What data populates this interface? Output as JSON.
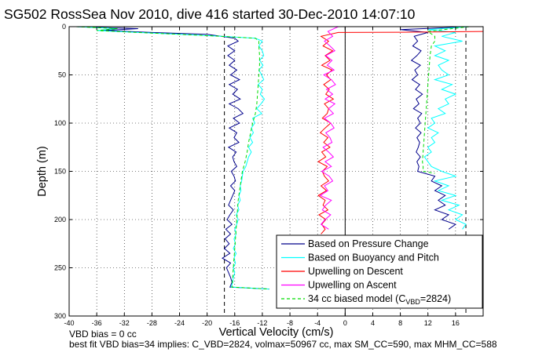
{
  "title": "SG502 RossSea Nov 2010, dive 416 started 30-Dec-2010 14:07:10",
  "footer": {
    "line1": "VBD bias = 0 cc",
    "line2": "best fit VBD bias=34 implies: C_VBD=2824, volmax=50967 cc, max SM_CC=590, max MHM_CC=588"
  },
  "colors": {
    "pressure": "#00008b",
    "buoyancy": "#00ffff",
    "descent": "#ff0000",
    "ascent": "#ff00ff",
    "model": "#00dd00"
  },
  "chart_data": {
    "type": "line",
    "title": "SG502 RossSea Nov 2010, dive 416 started 30-Dec-2010 14:07:10",
    "xlabel": "Vertical Velocity (cm/s)",
    "ylabel": "Depth (m)",
    "xlim": [
      -40,
      20
    ],
    "ylim": [
      0,
      300
    ],
    "y_inverted": true,
    "grid": true,
    "x_ticks": [
      -40,
      -36,
      -32,
      -28,
      -24,
      -20,
      -16,
      -12,
      -8,
      -4,
      0,
      4,
      8,
      12,
      16
    ],
    "y_ticks": [
      0,
      50,
      100,
      150,
      200,
      250,
      300
    ],
    "reference_lines_x": [
      -17.5,
      17.5
    ],
    "legend_position": "bottom-right",
    "legend": [
      "Based on Pressure Change",
      "Based on Buoyancy and Pitch",
      "Upwelling on Descent",
      "Upwelling on Ascent",
      "34 cc biased model (C"
    ],
    "legend_model_sub": "VBD",
    "legend_model_suffix": "=2824)",
    "series": [
      {
        "name": "Based on Pressure Change",
        "segments": [
          {
            "depth": [
              0,
              2,
              4,
              6,
              8,
              10,
              12,
              15,
              20,
              25,
              30,
              35,
              40,
              45,
              50,
              55,
              60,
              65,
              70,
              75,
              80,
              85,
              90,
              95,
              100,
              105,
              110,
              115,
              120,
              125,
              130,
              135,
              140,
              145,
              150,
              155,
              160,
              165,
              170,
              175,
              180,
              185,
              190,
              195,
              200,
              205,
              210,
              215,
              220,
              225,
              230,
              235,
              240,
              245,
              250,
              255,
              260,
              265,
              270,
              272
            ],
            "vel": [
              -39,
              -30,
              -35,
              -28,
              -20,
              -18,
              -16,
              -15.5,
              -17,
              -16,
              -17,
              -16,
              -16.8,
              -15.7,
              -16.6,
              -15.3,
              -16.8,
              -15.6,
              -16.3,
              -15.2,
              -16.8,
              -15.5,
              -14.8,
              -16.2,
              -15.3,
              -16.8,
              -15.7,
              -16.1,
              -15.4,
              -16.9,
              -15.8,
              -16.3,
              -16.1,
              -15.7,
              -16.5,
              -16.1,
              -15.9,
              -16.6,
              -16,
              -16.3,
              -16.6,
              -16.9,
              -16.2,
              -16.7,
              -17.1,
              -16.4,
              -17.3,
              -16.6,
              -17.4,
              -16.8,
              -17.5,
              -16.7,
              -17.8,
              -16.6,
              -17.2,
              -16.9,
              -16.6,
              -16.4,
              -16.7,
              -11
            ]
          },
          {
            "depth": [
              0,
              3,
              6,
              10,
              15,
              20,
              25,
              30,
              35,
              40,
              45,
              50,
              55,
              60,
              65,
              70,
              75,
              80,
              85,
              90,
              95,
              100,
              105,
              110,
              115,
              120,
              125,
              130,
              135,
              140,
              145,
              150,
              155,
              160,
              165,
              170,
              175,
              180,
              185,
              190,
              195,
              200,
              205,
              210
            ],
            "vel": [
              18,
              8,
              12,
              10,
              10.5,
              9.8,
              11,
              10.4,
              9.6,
              10.9,
              10.1,
              10.5,
              9.7,
              10.8,
              10.2,
              11.2,
              10.3,
              10.7,
              9.9,
              11.1,
              10.5,
              10.9,
              10.2,
              11,
              10.4,
              10.8,
              10.6,
              10.3,
              10.9,
              10.4,
              10.7,
              10.5,
              13,
              12.5,
              14,
              13,
              14.5,
              13.5,
              14.5,
              13,
              15,
              14,
              16,
              15
            ]
          }
        ]
      },
      {
        "name": "Based on Buoyancy and Pitch",
        "segments": [
          {
            "depth": [
              0,
              2,
              4,
              6,
              8,
              10,
              12,
              15,
              20,
              25,
              30,
              35,
              40,
              45,
              50,
              55,
              60,
              65,
              70,
              75,
              80,
              85,
              90,
              95,
              100,
              105,
              110,
              115,
              120,
              125,
              130,
              135,
              140,
              145,
              150,
              155,
              160,
              165,
              170,
              175,
              180,
              185,
              190,
              195,
              200,
              205,
              210,
              215,
              220,
              225,
              230,
              235,
              240,
              245,
              250,
              255,
              260,
              265,
              270,
              272
            ],
            "vel": [
              -39,
              -33,
              -36,
              -30,
              -24,
              -18,
              -13,
              -12,
              -12.5,
              -12,
              -11.8,
              -12.4,
              -11.9,
              -12.5,
              -12.1,
              -11.8,
              -12.6,
              -12,
              -12.3,
              -11.7,
              -12.2,
              -12.8,
              -12.1,
              -13.4,
              -13.1,
              -13.6,
              -13.3,
              -13.8,
              -13.4,
              -14,
              -13.6,
              -14,
              -14.2,
              -14.4,
              -14.8,
              -14.9,
              -15,
              -15.2,
              -15.1,
              -15.4,
              -15.2,
              -15.6,
              -15.4,
              -15.8,
              -15.5,
              -15.7,
              -16,
              -15.8,
              -16.1,
              -15.9,
              -16.2,
              -15.8,
              -16.1,
              -15.9,
              -16.2,
              -16,
              -16.2,
              -16.3,
              -16.5,
              -11
            ]
          },
          {
            "depth": [
              0,
              3,
              6,
              10,
              15,
              20,
              25,
              30,
              35,
              40,
              45,
              50,
              55,
              60,
              65,
              70,
              75,
              80,
              85,
              90,
              95,
              100,
              105,
              110,
              115,
              120,
              125,
              130,
              135,
              140,
              145,
              150,
              155,
              160,
              165,
              170,
              175,
              180,
              185,
              190,
              195,
              200,
              205,
              210
            ],
            "vel": [
              18,
              12,
              16,
              14,
              17,
              13,
              14.5,
              13,
              15,
              13.5,
              14,
              15,
              13,
              15.5,
              14,
              16,
              14.5,
              15,
              13.5,
              14.5,
              12.5,
              13,
              12,
              13.5,
              12.5,
              13,
              12,
              12.5,
              11.5,
              12,
              12.5,
              14,
              16,
              13,
              15,
              13.5,
              16,
              14,
              16.5,
              15,
              17,
              16,
              17.5,
              17
            ]
          }
        ]
      },
      {
        "name": "Upwelling on Descent",
        "segments": [
          {
            "depth": [
              5,
              5.8,
              6,
              10,
              15,
              20,
              25,
              30,
              35,
              40,
              45,
              50,
              55,
              60,
              65,
              70,
              75,
              80,
              85,
              90,
              95,
              100,
              105,
              110,
              115,
              120,
              125,
              130,
              135,
              140,
              145,
              150,
              155,
              160,
              165,
              170,
              175,
              180,
              185,
              190,
              195,
              200,
              205,
              210,
              215
            ],
            "vel": [
              20,
              8,
              -1,
              -3.5,
              -2.4,
              -3.2,
              -1.8,
              -2.9,
              -2.2,
              -3.4,
              -1.9,
              -2.7,
              -2.1,
              -3.1,
              -2.3,
              -2.8,
              -1.7,
              -3,
              -2.4,
              -2.6,
              -3.3,
              -2.1,
              -2.9,
              -3.6,
              -2.5,
              -3.1,
              -2.2,
              -3.4,
              -2.8,
              -3.9,
              -2.6,
              -3.3,
              -3,
              -2.4,
              -3.5,
              -2.7,
              -3.9,
              -2.9,
              -3.2,
              -2.5,
              -3.8,
              -2.8,
              -3.4,
              -2.9,
              -3.5
            ]
          }
        ]
      },
      {
        "name": "Upwelling on Ascent",
        "segments": [
          {
            "depth": [
              0,
              5,
              10,
              15,
              20,
              25,
              30,
              35,
              40,
              45,
              50,
              55,
              60,
              65,
              70,
              75,
              80,
              85,
              90,
              95,
              100,
              105,
              110,
              115,
              120,
              125,
              130,
              135,
              140,
              145,
              150,
              155,
              160,
              165,
              170,
              175,
              180,
              185,
              190,
              195,
              200,
              205,
              210
            ],
            "vel": [
              -1,
              -2.5,
              -1.8,
              -3,
              -2.2,
              -1.5,
              -2.8,
              -1.9,
              -2.6,
              -1.6,
              -3.1,
              -2,
              -1.4,
              -2.7,
              -1.8,
              -2.9,
              -1.5,
              -2.4,
              -1.7,
              -3,
              -2.1,
              -1.6,
              -2.8,
              -2.2,
              -1.9,
              -3.2,
              -2.4,
              -1.7,
              -2.9,
              -2,
              -3.4,
              -2.3,
              -1.8,
              -3,
              -2.5,
              -3.6,
              -2,
              -2.8,
              -3.3,
              -2.1,
              -2.9,
              -3.5,
              -2.4
            ]
          }
        ]
      },
      {
        "name": "34 cc biased model (C_VBD=2824)",
        "dashed": true,
        "segments": [
          {
            "depth": [
              0,
              2,
              4,
              6,
              8,
              10,
              12,
              15,
              20,
              30,
              40,
              50,
              60,
              70,
              80,
              90,
              100,
              110,
              120,
              130,
              140,
              150,
              160,
              170,
              180,
              190,
              200,
              210,
              220,
              230,
              240,
              250,
              260,
              270,
              272
            ],
            "vel": [
              -39,
              -33,
              -36,
              -30,
              -24,
              -18,
              -13,
              -12.5,
              -12.5,
              -12.4,
              -12.4,
              -12.5,
              -12.6,
              -12.7,
              -12.8,
              -13,
              -13.4,
              -13.7,
              -14,
              -14.2,
              -14.5,
              -14.9,
              -15.1,
              -15.3,
              -15.5,
              -15.6,
              -15.7,
              -15.8,
              -15.9,
              -16,
              -16.1,
              -16.2,
              -16.3,
              -16.4,
              -11
            ]
          },
          {
            "depth": [
              0,
              5,
              10,
              15,
              20,
              30,
              40,
              50,
              60,
              80,
              100,
              120,
              140,
              145,
              150,
              152
            ],
            "vel": [
              18,
              12,
              13,
              13,
              12.5,
              12.3,
              12.2,
              12.1,
              12,
              11.8,
              11.6,
              11.4,
              11.2,
              11.3,
              11.3,
              13
            ]
          }
        ]
      }
    ]
  }
}
